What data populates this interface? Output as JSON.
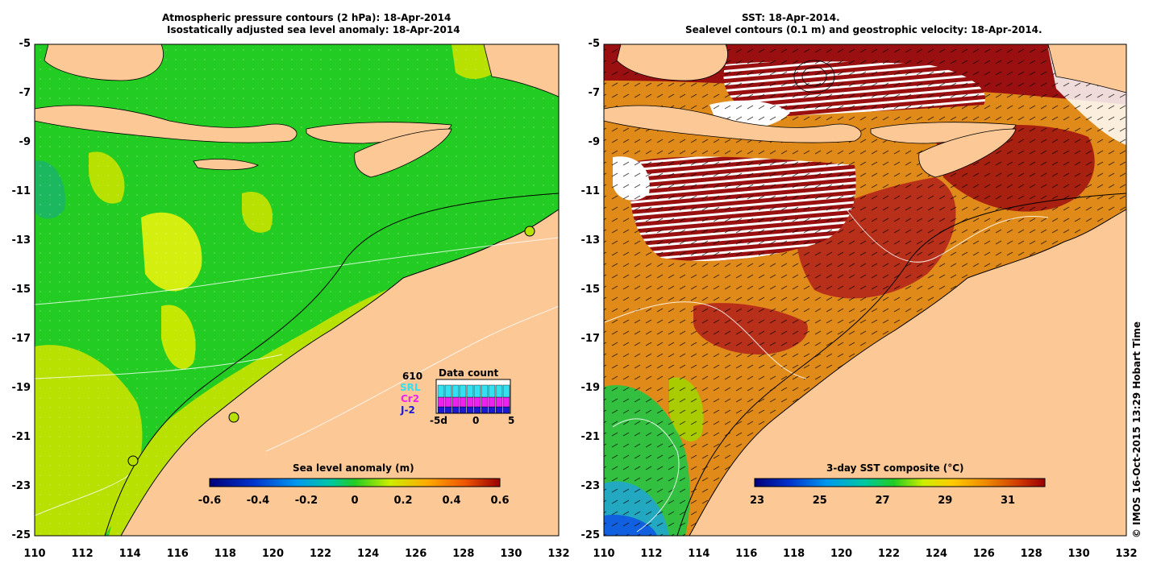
{
  "left_panel": {
    "title_line1": "Atmospheric pressure contours (2 hPa): 18-Apr-2014",
    "title_line2": "Isostatically adjusted sea level anomaly: 18-Apr-2014",
    "y_ticks": [
      "-5",
      "-7",
      "-9",
      "-11",
      "-13",
      "-15",
      "-17",
      "-19",
      "-21",
      "-23",
      "-25"
    ],
    "x_ticks": [
      "110",
      "112",
      "114",
      "116",
      "118",
      "120",
      "122",
      "124",
      "126",
      "128",
      "130",
      "132"
    ],
    "colorbar": {
      "title": "Sea level anomaly (m)",
      "ticks": [
        "-0.6",
        "-0.4",
        "-0.2",
        "0",
        "0.2",
        "0.4",
        "0.6"
      ]
    },
    "data_count": {
      "title": "Data count",
      "total": "610",
      "sources": [
        "SRL",
        "Cr2",
        "J-2"
      ],
      "source_colors": [
        "#33e0f0",
        "#ee22ee",
        "#1a1ad0"
      ],
      "axis_ticks": [
        "-5d",
        "0",
        "5"
      ]
    }
  },
  "right_panel": {
    "title_line1": "SST: 18-Apr-2014.",
    "title_line2": "Sealevel contours (0.1 m) and geostrophic velocity: 18-Apr-2014.",
    "y_ticks": [
      "-5",
      "-7",
      "-9",
      "-11",
      "-13",
      "-15",
      "-17",
      "-19",
      "-21",
      "-23",
      "-25"
    ],
    "x_ticks": [
      "110",
      "112",
      "114",
      "116",
      "118",
      "120",
      "122",
      "124",
      "126",
      "128",
      "130",
      "132"
    ],
    "colorbar": {
      "title": "3-day SST composite (°C)",
      "ticks": [
        "23",
        "25",
        "27",
        "29",
        "31"
      ]
    }
  },
  "credit": "© IMOS 16-Oct-2015 13:29 Hobart Time",
  "colors": {
    "land": "#fcc896",
    "ocean_low": "#22cc22",
    "sst_warm": "#e08a1a",
    "sst_hot": "#9a1010"
  }
}
